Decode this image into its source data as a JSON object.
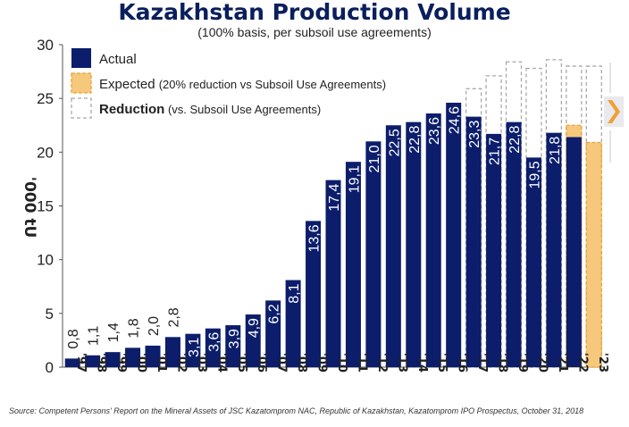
{
  "title": "Kazakhstan Production Volume",
  "subtitle": "(100% basis, per subsoil use agreements)",
  "source": "Source: Competent Persons' Report on the Mineral Assets of JSC Kazatomprom NAC, Republic of Kazakhstan, Kazatomprom IPO Prospectus, October 31, 2018",
  "colors": {
    "actual": "#0b1d6b",
    "expected": "#f6c87c",
    "expected_border": "#e8a23a",
    "reduction_border": "#a8a8a8",
    "accent_arrow": "#f0a030"
  },
  "chart_data": {
    "type": "bar",
    "ylabel": "'000 tU",
    "ylim": [
      0,
      30
    ],
    "yticks": [
      "0",
      "5",
      "10",
      "15",
      "20",
      "25",
      "30"
    ],
    "grid": false,
    "legend_position": "top-left",
    "legend": [
      {
        "key": "actual",
        "label": "Actual",
        "bold": "",
        "rest": ""
      },
      {
        "key": "expected",
        "label": "Expected",
        "bold": "",
        "rest": "(20% reduction vs Subsoil Use Agreements)"
      },
      {
        "key": "reduction",
        "label": "Reduction",
        "bold": "Reduction",
        "rest": "(vs. Subsoil Use Agreements)"
      }
    ],
    "categories": [
      "'97",
      "'98",
      "'99",
      "'00",
      "'01",
      "'02",
      "'03",
      "'04",
      "'05",
      "'06",
      "'07",
      "'08",
      "'09",
      "'10",
      "'11",
      "'12",
      "'13",
      "'14",
      "'15",
      "'16",
      "'17",
      "'18",
      "'19",
      "'20",
      "'21",
      "'22",
      "'23"
    ],
    "series": [
      {
        "name": "Actual",
        "values": [
          0.8,
          1.1,
          1.4,
          1.8,
          2.0,
          2.8,
          3.1,
          3.6,
          3.9,
          4.9,
          6.2,
          8.1,
          13.6,
          17.4,
          19.1,
          21.0,
          22.5,
          22.8,
          23.6,
          24.6,
          23.3,
          21.7,
          22.8,
          19.5,
          21.8,
          21.4,
          null
        ]
      },
      {
        "name": "Expected",
        "values": [
          null,
          null,
          null,
          null,
          null,
          null,
          null,
          null,
          null,
          null,
          null,
          null,
          null,
          null,
          null,
          null,
          null,
          null,
          null,
          null,
          null,
          null,
          null,
          null,
          null,
          22.5,
          20.9
        ]
      },
      {
        "name": "Reduction",
        "values": [
          null,
          null,
          null,
          null,
          null,
          null,
          null,
          null,
          null,
          null,
          null,
          null,
          null,
          null,
          null,
          null,
          null,
          null,
          null,
          null,
          25.9,
          27.1,
          28.4,
          27.8,
          28.6,
          28.0,
          28.0
        ]
      }
    ],
    "data_labels": [
      "0,8",
      "1,1",
      "1,4",
      "1,8",
      "2,0",
      "2,8",
      "3,1",
      "3,6",
      "3,9",
      "4,9",
      "6,2",
      "8,1",
      "13,6",
      "17,4",
      "19,1",
      "21,0",
      "22,5",
      "22,8",
      "23,6",
      "24,6",
      "23,3",
      "21,7",
      "22,8",
      "19,5",
      "21,8",
      "",
      ""
    ]
  }
}
